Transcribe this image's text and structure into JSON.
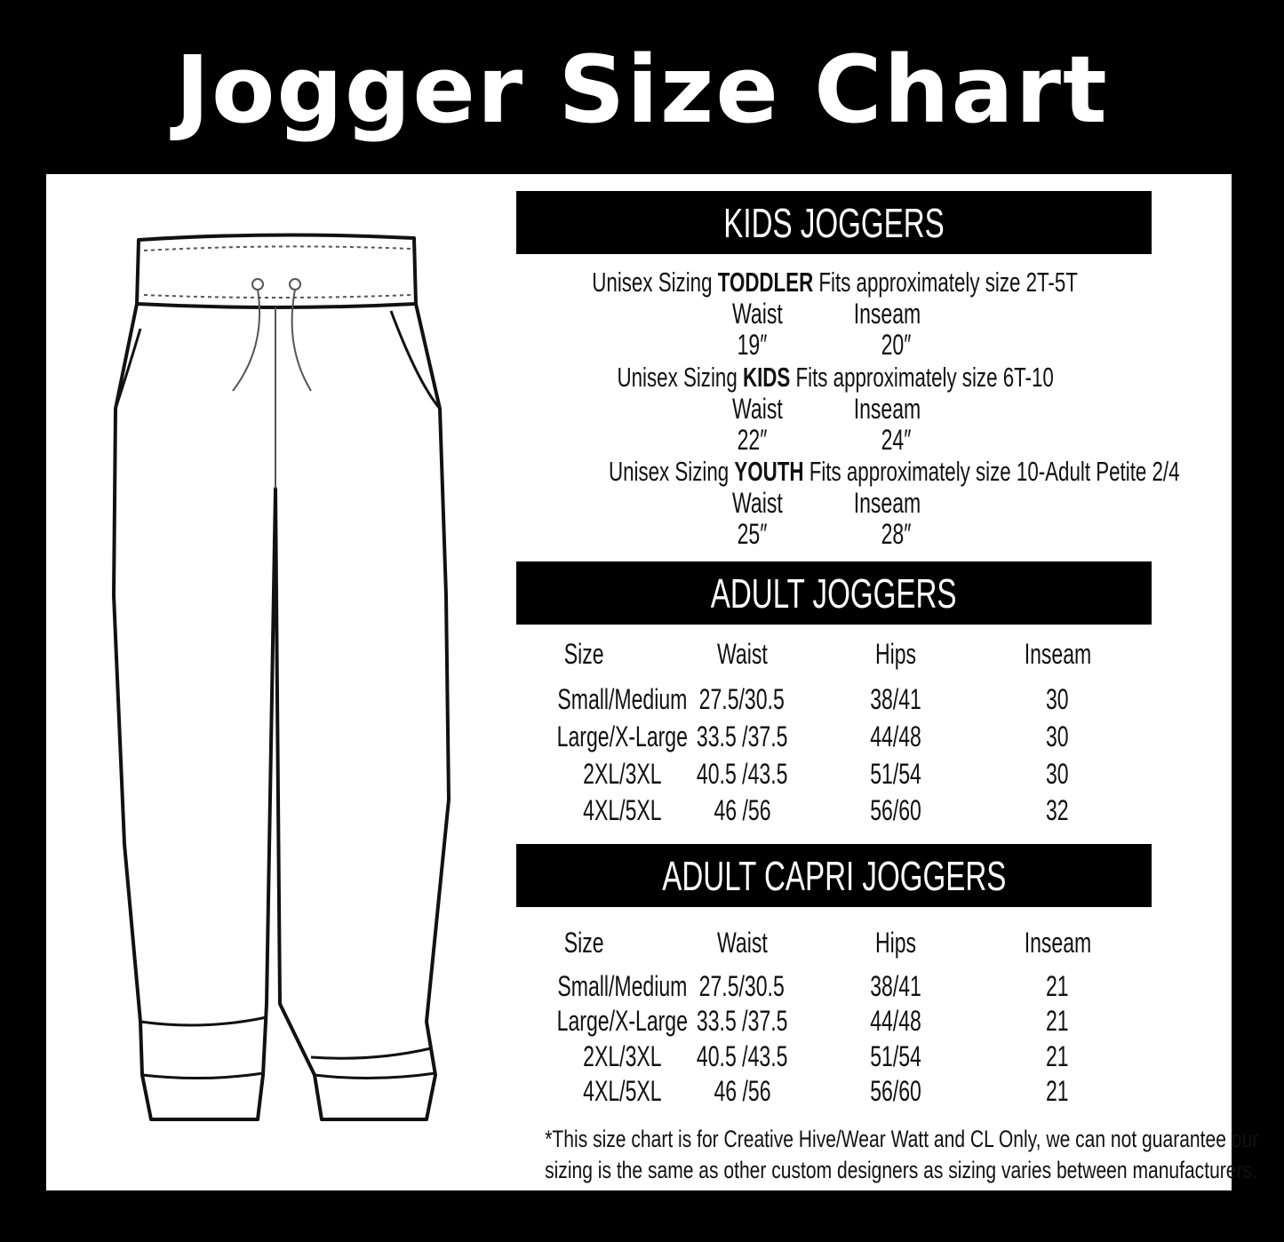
{
  "title": "Jogger Size Chart",
  "kids": {
    "header": "KIDS JOGGERS",
    "groups": [
      {
        "prefix": "Unisex Sizing",
        "label": "TODDLER",
        "suffix": "Fits approximately size 2T-5T",
        "waist_label": "Waist",
        "inseam_label": "Inseam",
        "waist": "19″",
        "inseam": "20″"
      },
      {
        "prefix": "Unisex Sizing",
        "label": "KIDS",
        "suffix": "Fits approximately size 6T-10",
        "waist_label": "Waist",
        "inseam_label": "Inseam",
        "waist": "22″",
        "inseam": "24″"
      },
      {
        "prefix": "Unisex Sizing",
        "label": "YOUTH",
        "suffix": "Fits approximately size 10-Adult Petite 2/4",
        "waist_label": "Waist",
        "inseam_label": "Inseam",
        "waist": "25″",
        "inseam": "28″"
      }
    ]
  },
  "adult": {
    "header": "ADULT JOGGERS",
    "columns": [
      "Size",
      "Waist",
      "Hips",
      "Inseam"
    ],
    "rows": [
      [
        "Small/Medium",
        "27.5/30.5",
        "38/41",
        "30"
      ],
      [
        "Large/X-Large",
        "33.5 /37.5",
        "44/48",
        "30"
      ],
      [
        "2XL/3XL",
        "40.5 /43.5",
        "51/54",
        "30"
      ],
      [
        "4XL/5XL",
        "46 /56",
        "56/60",
        "32"
      ]
    ]
  },
  "capri": {
    "header": "ADULT CAPRI JOGGERS",
    "columns": [
      "Size",
      "Waist",
      "Hips",
      "Inseam"
    ],
    "rows": [
      [
        "Small/Medium",
        "27.5/30.5",
        "38/41",
        "21"
      ],
      [
        "Large/X-Large",
        "33.5 /37.5",
        "44/48",
        "21"
      ],
      [
        "2XL/3XL",
        "40.5 /43.5",
        "51/54",
        "21"
      ],
      [
        "4XL/5XL",
        "46 /56",
        "56/60",
        "21"
      ]
    ]
  },
  "footnote": [
    "*This size chart is for Creative Hive/Wear Watt and CL Only, we can not guarantee our",
    "sizing is the same as other custom designers as sizing varies  between manufacturers."
  ]
}
